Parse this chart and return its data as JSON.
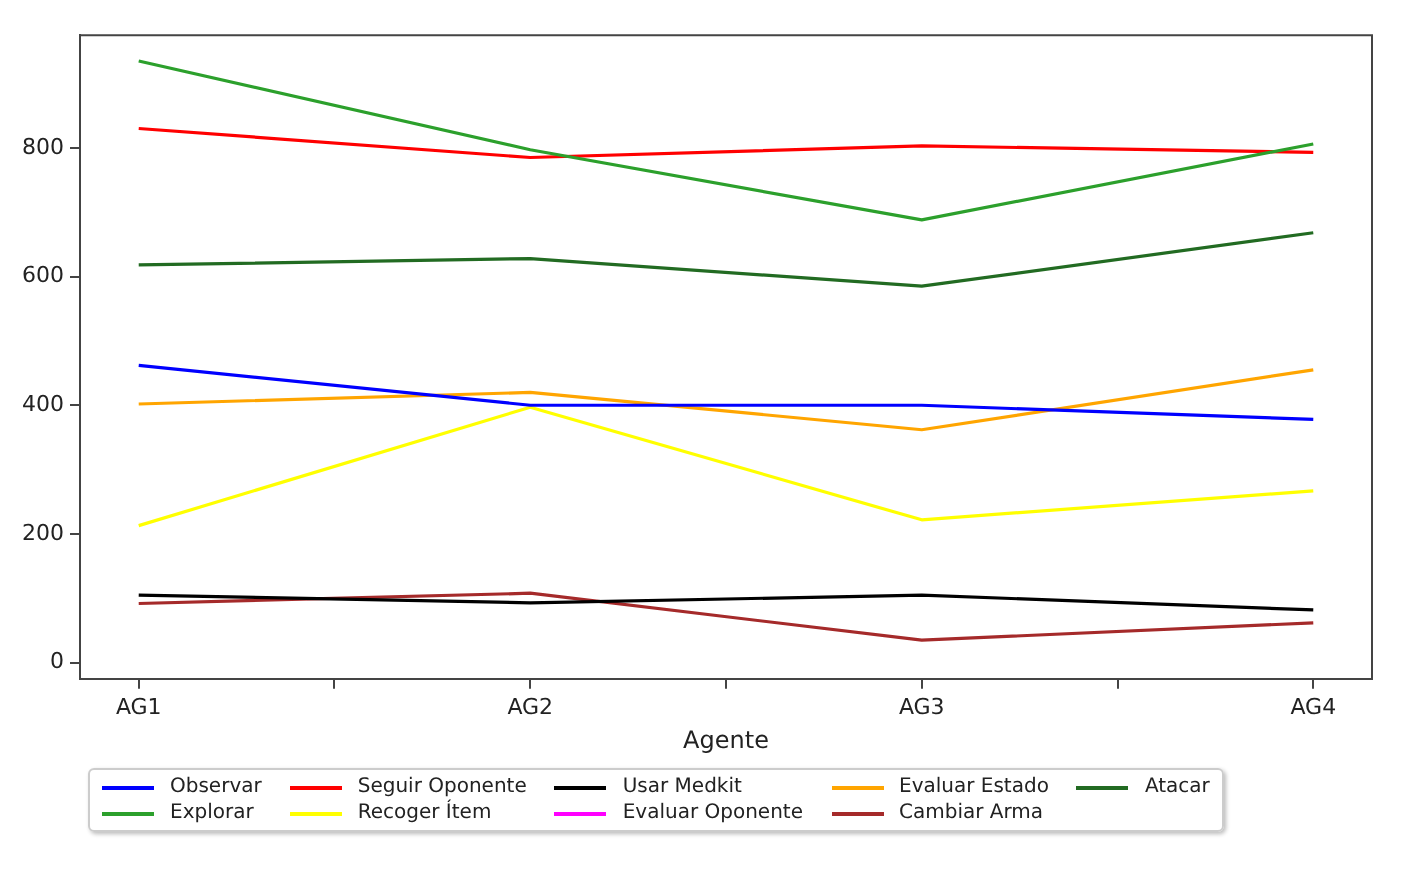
{
  "chart_data": {
    "type": "line",
    "xlabel": "Agente",
    "categories": [
      "AG1",
      "AG2",
      "AG3",
      "AG4"
    ],
    "ylim": [
      -25,
      975
    ],
    "yticks": [
      0,
      200,
      400,
      600,
      800
    ],
    "grid": false,
    "legend": "bottom",
    "marker": "none",
    "line_style": "solid",
    "series": [
      {
        "name": "Observar",
        "color": "#0000ff",
        "values": [
          462,
          400,
          400,
          378
        ]
      },
      {
        "name": "Explorar",
        "color": "#2ca02c",
        "values": [
          935,
          797,
          688,
          806
        ]
      },
      {
        "name": "Seguir Oponente",
        "color": "#ff0000",
        "values": [
          830,
          785,
          803,
          793
        ]
      },
      {
        "name": "Recoger Ítem",
        "color": "#ffff00",
        "values": [
          213,
          397,
          222,
          267
        ]
      },
      {
        "name": "Usar Medkit",
        "color": "#000000",
        "values": [
          105,
          93,
          105,
          82
        ]
      },
      {
        "name": "Evaluar Oponente",
        "color": "#ff00ff",
        "values": [
          null,
          null,
          null,
          null
        ]
      },
      {
        "name": "Evaluar Estado",
        "color": "#ffa500",
        "values": [
          402,
          420,
          362,
          455
        ]
      },
      {
        "name": "Cambiar Arma",
        "color": "#a52a2a",
        "values": [
          92,
          108,
          35,
          62
        ]
      },
      {
        "name": "Atacar",
        "color": "#226b22",
        "values": [
          618,
          628,
          585,
          668
        ]
      }
    ]
  }
}
